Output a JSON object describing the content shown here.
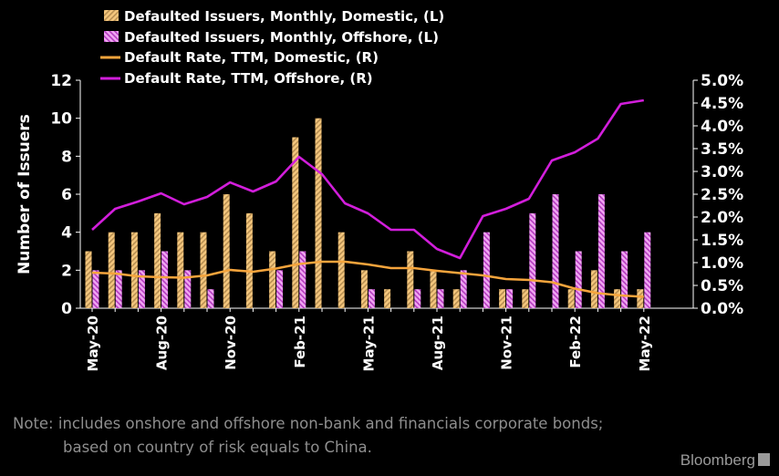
{
  "chart_data": {
    "type": "bar",
    "legend": {
      "position": "top-left",
      "entries": [
        "Defaulted Issuers, Monthly, Domestic, (L)",
        "Defaulted Issuers, Monthly, Offshore, (L)",
        "Default Rate, TTM, Domestic, (R)",
        "Default Rate, TTM, Offshore, (R)"
      ]
    },
    "ylabel": "Number of Issuers",
    "ylim": [
      0,
      12
    ],
    "y_ticks": [
      "0",
      "2",
      "4",
      "6",
      "8",
      "10",
      "12"
    ],
    "y2lim": [
      0,
      5.0
    ],
    "y2_ticks": [
      "0.0%",
      "0.5%",
      "1.0%",
      "1.5%",
      "2.0%",
      "2.5%",
      "3.0%",
      "3.5%",
      "4.0%",
      "4.5%",
      "5.0%"
    ],
    "x_ticks": [
      "May-20",
      "Aug-20",
      "Nov-20",
      "Feb-21",
      "May-21",
      "Aug-21",
      "Nov-21",
      "Feb-22",
      "May-22"
    ],
    "categories": [
      "May-20",
      "Jun-20",
      "Jul-20",
      "Aug-20",
      "Sep-20",
      "Oct-20",
      "Nov-20",
      "Dec-20",
      "Jan-21",
      "Feb-21",
      "Mar-21",
      "Apr-21",
      "May-21",
      "Jun-21",
      "Jul-21",
      "Aug-21",
      "Sep-21",
      "Oct-21",
      "Nov-21",
      "Dec-21",
      "Jan-22",
      "Feb-22",
      "Mar-22",
      "Apr-22",
      "May-22"
    ],
    "series": [
      {
        "name": "Defaulted Issuers, Monthly, Domestic, (L)",
        "kind": "bar",
        "axis": "left",
        "color": "#f5c77e",
        "values": [
          3,
          4,
          4,
          5,
          4,
          4,
          6,
          5,
          3,
          9,
          10,
          4,
          2,
          1,
          3,
          2,
          1,
          0,
          1,
          1,
          0,
          1,
          2,
          1,
          1
        ]
      },
      {
        "name": "Defaulted Issuers, Monthly, Offshore, (L)",
        "kind": "bar",
        "axis": "left",
        "color": "#e36ee6",
        "values": [
          2,
          2,
          2,
          3,
          2,
          1,
          0,
          0,
          2,
          3,
          0,
          0,
          1,
          0,
          1,
          1,
          2,
          4,
          1,
          5,
          6,
          3,
          6,
          3,
          4
        ]
      },
      {
        "name": "Default Rate, TTM, Domestic, (R)",
        "kind": "line",
        "axis": "right",
        "color": "#f5a43c",
        "values": [
          0.78,
          0.76,
          0.7,
          0.68,
          0.67,
          0.72,
          0.84,
          0.8,
          0.87,
          0.97,
          1.02,
          1.02,
          0.96,
          0.88,
          0.88,
          0.82,
          0.77,
          0.72,
          0.64,
          0.62,
          0.57,
          0.43,
          0.33,
          0.28,
          0.25
        ]
      },
      {
        "name": "Default Rate, TTM, Offshore, (R)",
        "kind": "line",
        "axis": "right",
        "color": "#d21edb",
        "values": [
          1.72,
          2.18,
          2.34,
          2.52,
          2.28,
          2.44,
          2.76,
          2.56,
          2.78,
          3.32,
          2.94,
          2.3,
          2.08,
          1.72,
          1.72,
          1.3,
          1.1,
          2.02,
          2.18,
          2.4,
          3.24,
          3.42,
          3.72,
          4.48,
          4.56
        ]
      }
    ],
    "grid": false
  },
  "note_lines": [
    "Note: includes onshore and offshore non-bank and financials corporate bonds;",
    "based on country of risk equals to China."
  ],
  "brand": "Bloomberg"
}
